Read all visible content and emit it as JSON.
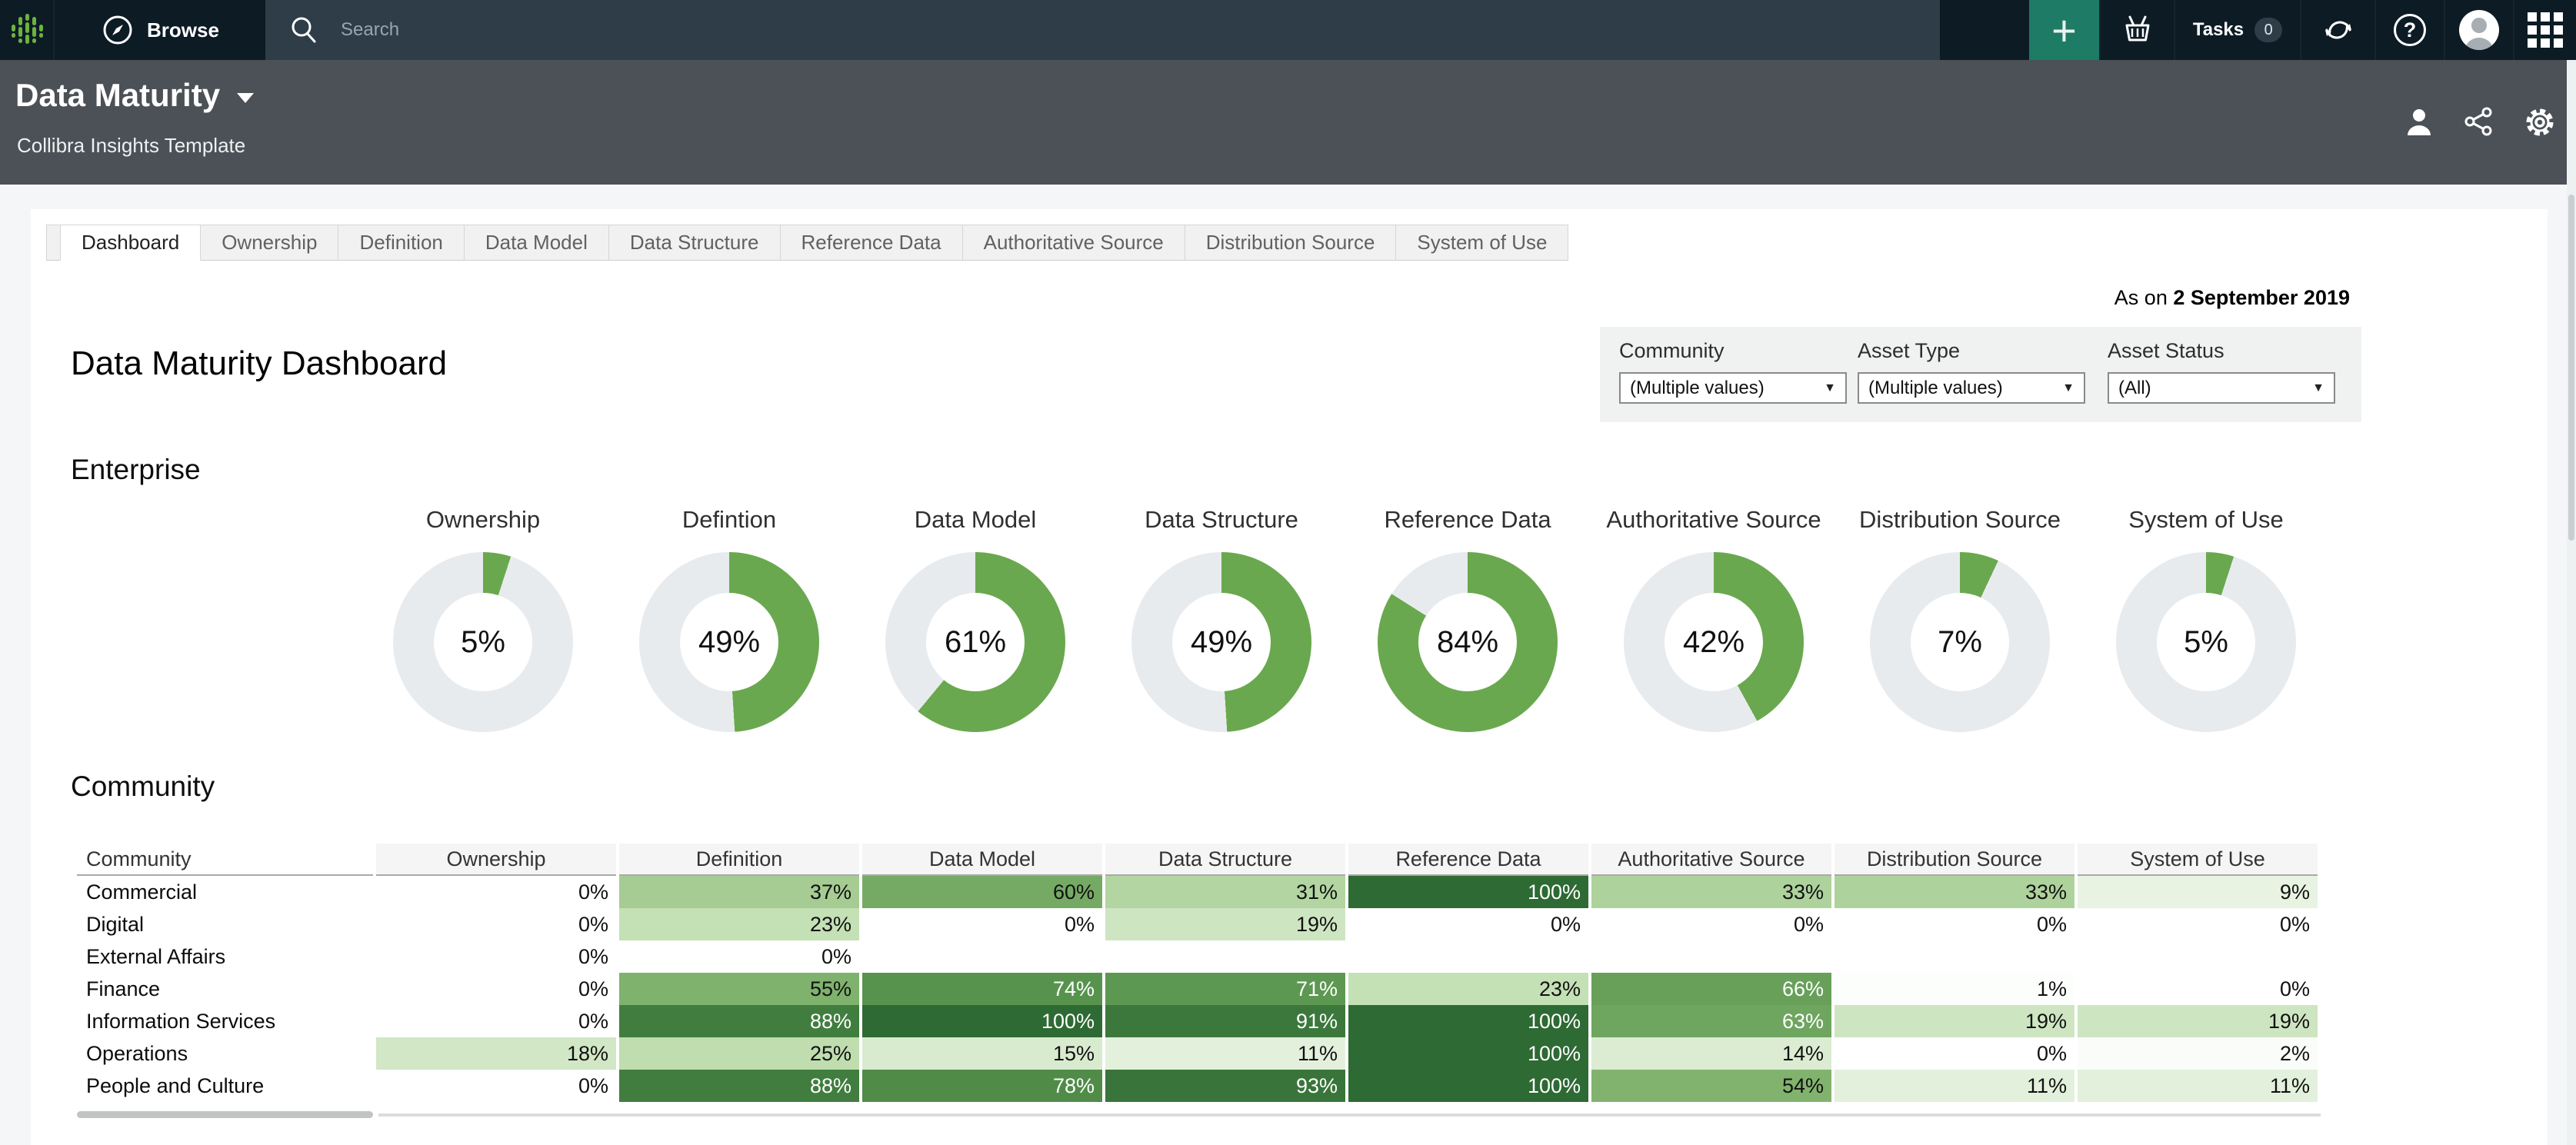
{
  "topbar": {
    "browse_label": "Browse",
    "search_placeholder": "Search",
    "tasks_label": "Tasks",
    "tasks_count": "0"
  },
  "header": {
    "title": "Data Maturity",
    "subtitle": "Collibra Insights Template"
  },
  "tabs": [
    {
      "label": "Dashboard",
      "active": true
    },
    {
      "label": "Ownership",
      "active": false
    },
    {
      "label": "Definition",
      "active": false
    },
    {
      "label": "Data Model",
      "active": false
    },
    {
      "label": "Data Structure",
      "active": false
    },
    {
      "label": "Reference Data",
      "active": false
    },
    {
      "label": "Authoritative Source",
      "active": false
    },
    {
      "label": "Distribution Source",
      "active": false
    },
    {
      "label": "System of Use",
      "active": false
    }
  ],
  "report": {
    "as_on_prefix": "As on",
    "as_on_date": "2 September 2019",
    "title": "Data Maturity Dashboard"
  },
  "filters": [
    {
      "label": "Community",
      "value": "(Multiple values)"
    },
    {
      "label": "Asset Type",
      "value": "(Multiple values)"
    },
    {
      "label": "Asset Status",
      "value": "(All)"
    }
  ],
  "enterprise": {
    "heading": "Enterprise",
    "donuts": [
      {
        "label": "Ownership",
        "value": 5
      },
      {
        "label": "Defintion",
        "value": 49
      },
      {
        "label": "Data Model",
        "value": 61
      },
      {
        "label": "Data Structure",
        "value": 49
      },
      {
        "label": "Reference Data",
        "value": 84
      },
      {
        "label": "Authoritative Source",
        "value": 42
      },
      {
        "label": "Distribution Source",
        "value": 7
      },
      {
        "label": "System of Use",
        "value": 5
      }
    ]
  },
  "community": {
    "heading": "Community",
    "columns": [
      "Community",
      "Ownership",
      "Definition",
      "Data Model",
      "Data Structure",
      "Reference Data",
      "Authoritative Source",
      "Distribution Source",
      "System of Use"
    ],
    "rows": [
      {
        "name": "Commercial",
        "values": [
          0,
          37,
          60,
          31,
          100,
          33,
          33,
          9
        ]
      },
      {
        "name": "Digital",
        "values": [
          0,
          23,
          0,
          19,
          0,
          0,
          0,
          0
        ]
      },
      {
        "name": "External Affairs",
        "values": [
          0,
          0,
          null,
          null,
          null,
          null,
          null,
          null
        ]
      },
      {
        "name": "Finance",
        "values": [
          0,
          55,
          74,
          71,
          23,
          66,
          1,
          0
        ]
      },
      {
        "name": "Information Services",
        "values": [
          0,
          88,
          100,
          91,
          100,
          63,
          19,
          19
        ]
      },
      {
        "name": "Operations",
        "values": [
          18,
          25,
          15,
          11,
          100,
          14,
          0,
          2
        ]
      },
      {
        "name": "People and Culture",
        "values": [
          0,
          88,
          78,
          93,
          100,
          54,
          11,
          11
        ]
      }
    ]
  },
  "chart_data": [
    {
      "type": "pie",
      "variant": "donut-kpi-row",
      "title": "Enterprise",
      "categories": [
        "Ownership",
        "Defintion",
        "Data Model",
        "Data Structure",
        "Reference Data",
        "Authoritative Source",
        "Distribution Source",
        "System of Use"
      ],
      "values": [
        5,
        49,
        61,
        49,
        84,
        42,
        7,
        5
      ],
      "unit": "%"
    },
    {
      "type": "heatmap",
      "title": "Community",
      "rows": [
        "Commercial",
        "Digital",
        "External Affairs",
        "Finance",
        "Information Services",
        "Operations",
        "People and Culture"
      ],
      "columns": [
        "Ownership",
        "Definition",
        "Data Model",
        "Data Structure",
        "Reference Data",
        "Authoritative Source",
        "Distribution Source",
        "System of Use"
      ],
      "values": [
        [
          0,
          37,
          60,
          31,
          100,
          33,
          33,
          9
        ],
        [
          0,
          23,
          0,
          19,
          0,
          0,
          0,
          0
        ],
        [
          0,
          0,
          null,
          null,
          null,
          null,
          null,
          null
        ],
        [
          0,
          55,
          74,
          71,
          23,
          66,
          1,
          0
        ],
        [
          0,
          88,
          100,
          91,
          100,
          63,
          19,
          19
        ],
        [
          18,
          25,
          15,
          11,
          100,
          14,
          0,
          2
        ],
        [
          0,
          88,
          78,
          93,
          100,
          54,
          11,
          11
        ]
      ],
      "unit": "%"
    }
  ],
  "colors": {
    "accent_green": "#6aa84f",
    "donut_track": "#e8ebee",
    "heatmap_ramp": [
      "#ffffff",
      "#bfddaf",
      "#8aba75",
      "#55914b",
      "#2e6a33"
    ],
    "white_text_min": 63,
    "topbar_bg": "#0f1e29",
    "topbar_tile_bg": "#0d1b25",
    "search_bg": "#2e3d48",
    "plus_green": "#1e7b65",
    "header_bg": "#4b5157",
    "page_bg": "#f4f6f7"
  }
}
